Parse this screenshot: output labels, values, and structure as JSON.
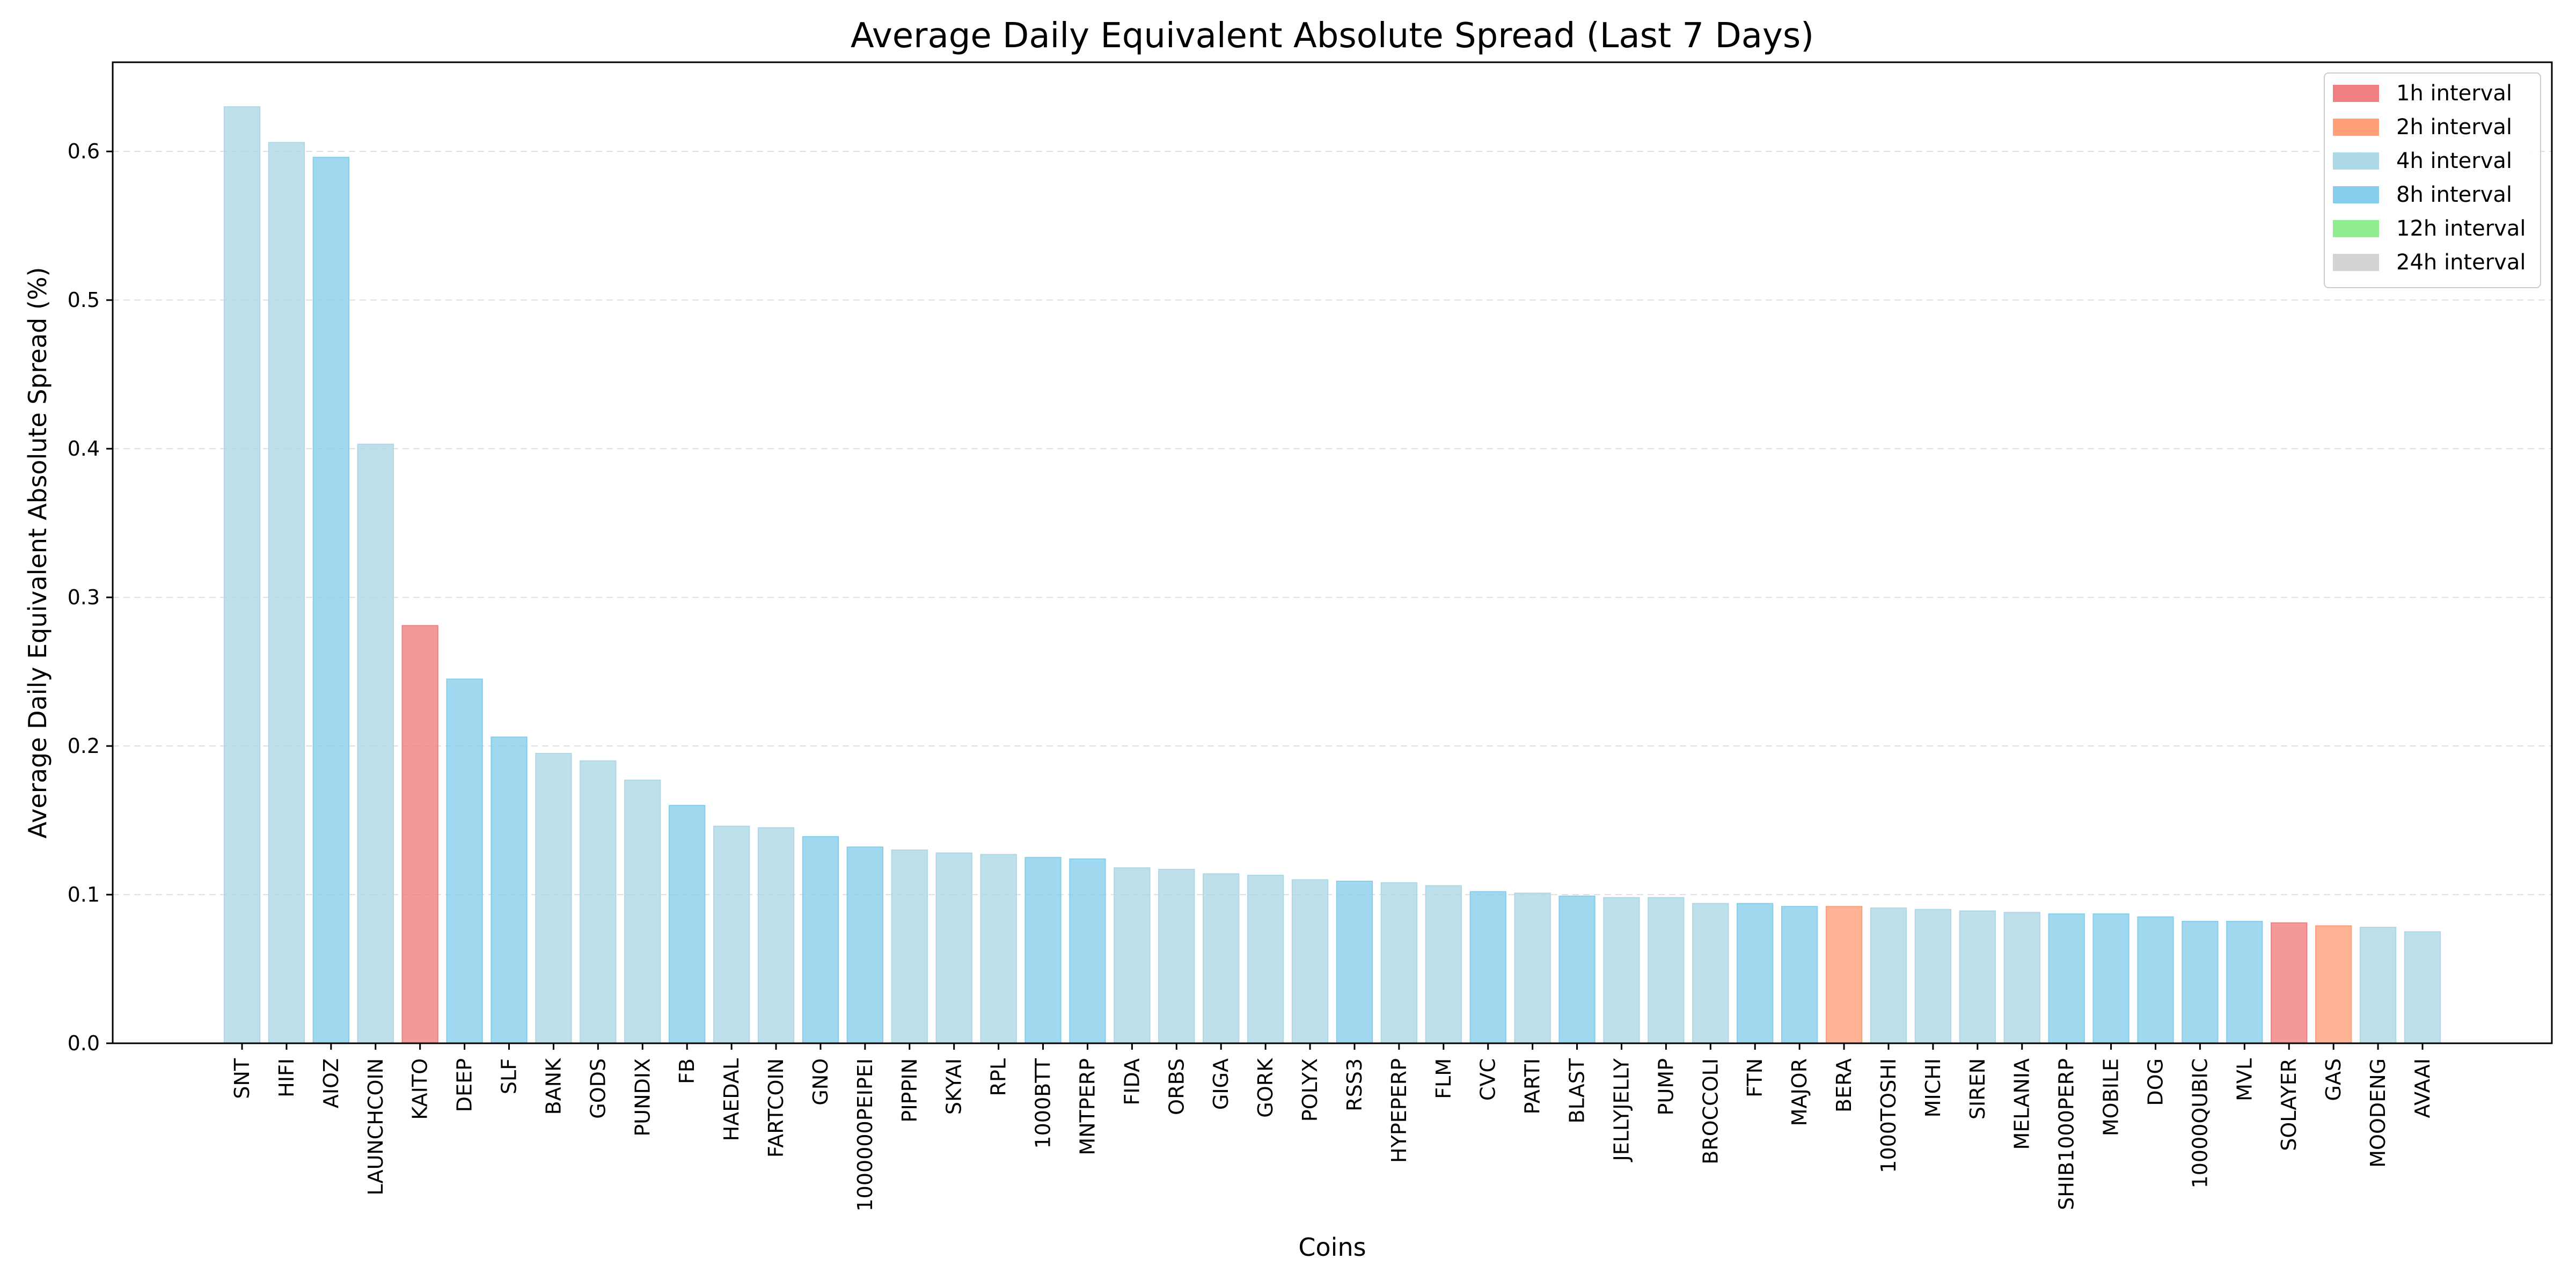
{
  "chart_data": {
    "type": "bar",
    "title": "Average Daily Equivalent Absolute Spread (Last 7 Days)",
    "xlabel": "Coins",
    "ylabel": "Average Daily Equivalent Absolute Spread (%)",
    "ylim": [
      0,
      0.66
    ],
    "yticks": [
      "0.0",
      "0.1",
      "0.2",
      "0.3",
      "0.4",
      "0.5",
      "0.6"
    ],
    "grid": "horizontal dashed",
    "legend_position": "top-right",
    "legend": [
      {
        "label": "1h interval",
        "color": "#f08080"
      },
      {
        "label": "2h interval",
        "color": "#ffa07a"
      },
      {
        "label": "4h interval",
        "color": "#add8e6"
      },
      {
        "label": "8h interval",
        "color": "#87ceeb"
      },
      {
        "label": "12h interval",
        "color": "#90ee90"
      },
      {
        "label": "24h interval",
        "color": "#d3d3d3"
      }
    ],
    "categories": [
      "SNT",
      "HIFI",
      "AIOZ",
      "LAUNCHCOIN",
      "KAITO",
      "DEEP",
      "SLF",
      "BANK",
      "GODS",
      "PUNDIX",
      "FB",
      "HAEDAL",
      "FARTCOIN",
      "GNO",
      "1000000PEIPEI",
      "PIPPIN",
      "SKYAI",
      "RPL",
      "1000BTT",
      "MNTPERP",
      "FIDA",
      "ORBS",
      "GIGA",
      "GORK",
      "POLYX",
      "RSS3",
      "HYPEPERP",
      "FLM",
      "CVC",
      "PARTI",
      "BLAST",
      "JELLYJELLY",
      "PUMP",
      "BROCCOLI",
      "FTN",
      "MAJOR",
      "BERA",
      "1000TOSHI",
      "MICHI",
      "SIREN",
      "MELANIA",
      "SHIB1000PERP",
      "MOBILE",
      "DOG",
      "10000QUBIC",
      "MVL",
      "SOLAYER",
      "GAS",
      "MOODENG",
      "AVAAI"
    ],
    "values": [
      0.63,
      0.606,
      0.596,
      0.403,
      0.281,
      0.245,
      0.206,
      0.195,
      0.19,
      0.177,
      0.16,
      0.146,
      0.145,
      0.139,
      0.132,
      0.13,
      0.128,
      0.127,
      0.125,
      0.124,
      0.118,
      0.117,
      0.114,
      0.113,
      0.11,
      0.109,
      0.108,
      0.106,
      0.102,
      0.101,
      0.099,
      0.098,
      0.098,
      0.094,
      0.094,
      0.092,
      0.092,
      0.091,
      0.09,
      0.089,
      0.088,
      0.087,
      0.087,
      0.085,
      0.082,
      0.082,
      0.081,
      0.079,
      0.078,
      0.075
    ],
    "intervals": [
      "4h",
      "4h",
      "8h",
      "4h",
      "1h",
      "8h",
      "8h",
      "4h",
      "4h",
      "4h",
      "8h",
      "4h",
      "4h",
      "8h",
      "8h",
      "4h",
      "4h",
      "4h",
      "8h",
      "8h",
      "4h",
      "4h",
      "4h",
      "4h",
      "4h",
      "8h",
      "4h",
      "4h",
      "8h",
      "4h",
      "8h",
      "4h",
      "4h",
      "4h",
      "8h",
      "8h",
      "2h",
      "4h",
      "4h",
      "4h",
      "4h",
      "8h",
      "8h",
      "8h",
      "8h",
      "8h",
      "1h",
      "2h",
      "4h",
      "4h"
    ]
  }
}
